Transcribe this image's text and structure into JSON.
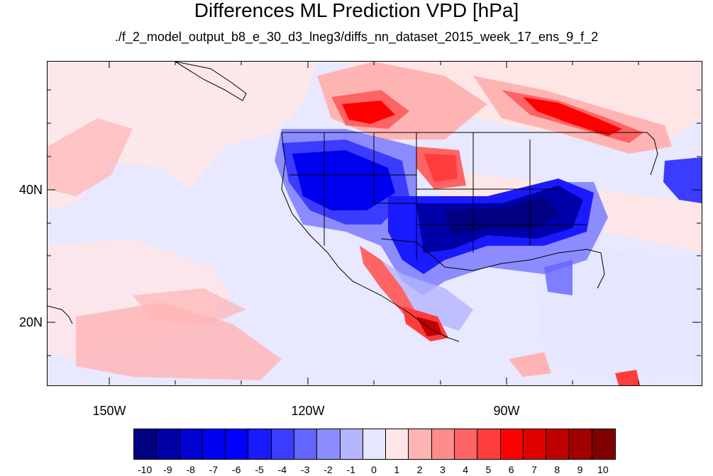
{
  "title": "Differences ML Prediction VPD [hPa]",
  "subtitle": "./f_2_model_output_b8_e_30_d3_lneg3/diffs_nn_dataset_2015_week_17_ens_9_f_2",
  "axes": {
    "lat_labels": [
      "40N",
      "20N"
    ],
    "lon_labels": [
      "150W",
      "120W",
      "90W"
    ]
  },
  "colorbar": {
    "labels": [
      "-10",
      "-9",
      "-8",
      "-7",
      "-6",
      "-5",
      "-4",
      "-3",
      "-2",
      "-1",
      "0",
      "1",
      "2",
      "3",
      "4",
      "5",
      "6",
      "7",
      "8",
      "9",
      "10"
    ],
    "colors": [
      "#000080",
      "#0000a8",
      "#0000d0",
      "#0000f0",
      "#0000ff",
      "#1a1aff",
      "#3c3cff",
      "#6464ff",
      "#8c8cff",
      "#b4b4ff",
      "#e6e6ff",
      "#ffe6e6",
      "#ffb4b4",
      "#ff8c8c",
      "#ff6464",
      "#ff3c3c",
      "#ff0000",
      "#e00000",
      "#c00000",
      "#a00000",
      "#800000"
    ]
  }
}
